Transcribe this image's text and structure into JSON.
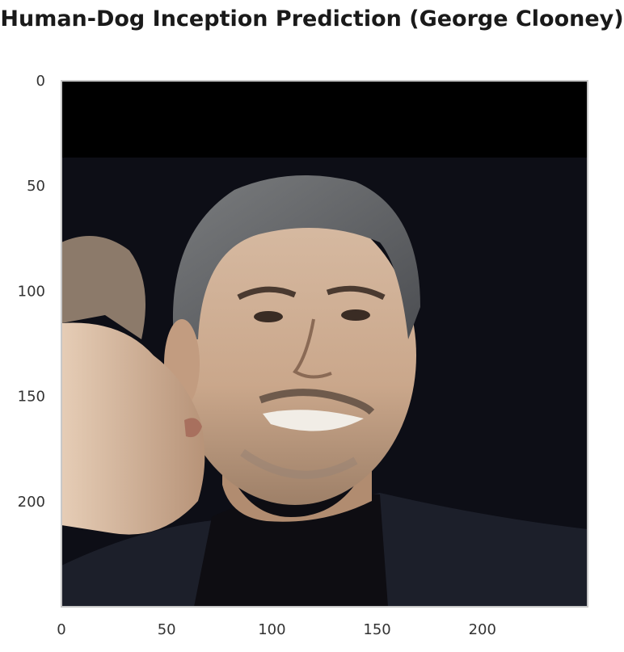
{
  "chart_data": {
    "type": "image",
    "title": "Human-Dog Inception Prediction (George Clooney)",
    "xlabel": "",
    "ylabel": "",
    "xlim": [
      0,
      250
    ],
    "ylim": [
      250,
      0
    ],
    "y_inverted": true,
    "xticks": [
      0,
      50,
      100,
      150,
      200
    ],
    "yticks": [
      0,
      50,
      100,
      150,
      200
    ],
    "xtick_labels": [
      "0",
      "50",
      "100",
      "150",
      "200"
    ],
    "ytick_labels": [
      "0",
      "50",
      "100",
      "150",
      "200"
    ],
    "grid": false,
    "image_content": "photo-of-man-smiling-with-cheek-kissed",
    "colors": {
      "top_band": "#000000",
      "background": "#0d0e16",
      "hair": "#686a6c",
      "skin": "#d5b79c",
      "sweater": "#0e0d12",
      "jacket": "#1c1f2a",
      "frame": "#c8c8c8",
      "tick_text": "#333333"
    }
  }
}
